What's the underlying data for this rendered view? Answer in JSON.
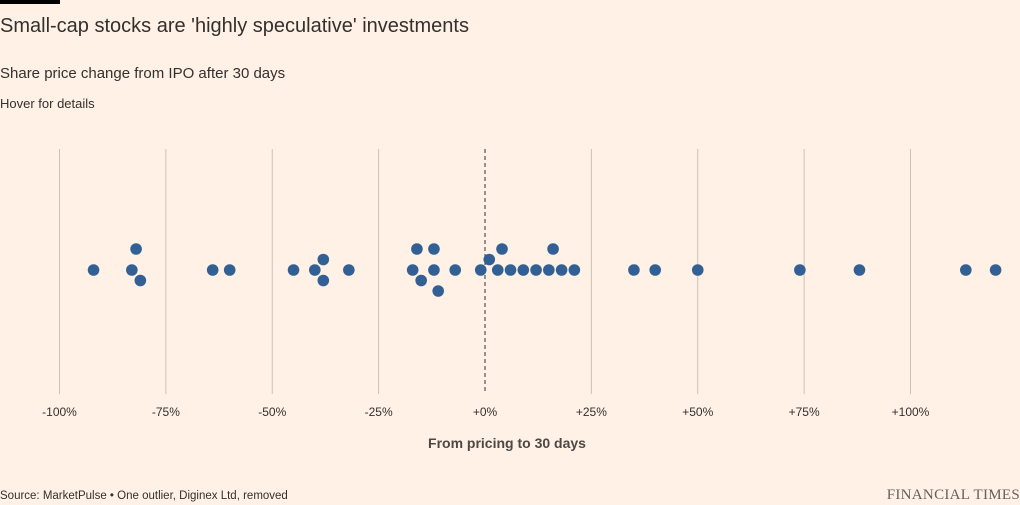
{
  "title": "Small-cap stocks are 'highly speculative' investments",
  "subtitle": "Share price change from IPO after 30 days",
  "hover_note": "Hover for details",
  "source": "Source: MarketPulse • One outlier, Diginex Ltd, removed",
  "brand": "FINANCIAL TIMES",
  "colors": {
    "background": "#fff1e5",
    "dot": "#336094",
    "grid": "#ccc1b7",
    "zero_line": "#33302e",
    "text": "#33302e"
  },
  "chart_data": {
    "type": "scatter",
    "title": "Small-cap stocks are 'highly speculative' investments",
    "subtitle": "Share price change from IPO after 30 days",
    "xlabel": "From pricing to 30 days",
    "ylabel": "",
    "xlim": [
      -100,
      120
    ],
    "ticks": [
      -100,
      -75,
      -50,
      -25,
      0,
      25,
      50,
      75,
      100
    ],
    "tick_labels": [
      "-100%",
      "-75%",
      "-50%",
      "-25%",
      "+0%",
      "+25%",
      "+50%",
      "+75%",
      "+100%"
    ],
    "grid": true,
    "reference_line": 0,
    "points": [
      -92,
      -83,
      -81,
      -82,
      -64,
      -60,
      -45,
      -40,
      -38,
      -38,
      -32,
      -16,
      -12,
      -17,
      -12,
      -15,
      -11,
      -7,
      -1,
      1,
      3,
      4,
      6,
      9,
      12,
      15,
      16,
      18,
      21,
      35,
      40,
      50,
      74,
      88,
      113,
      120
    ]
  }
}
